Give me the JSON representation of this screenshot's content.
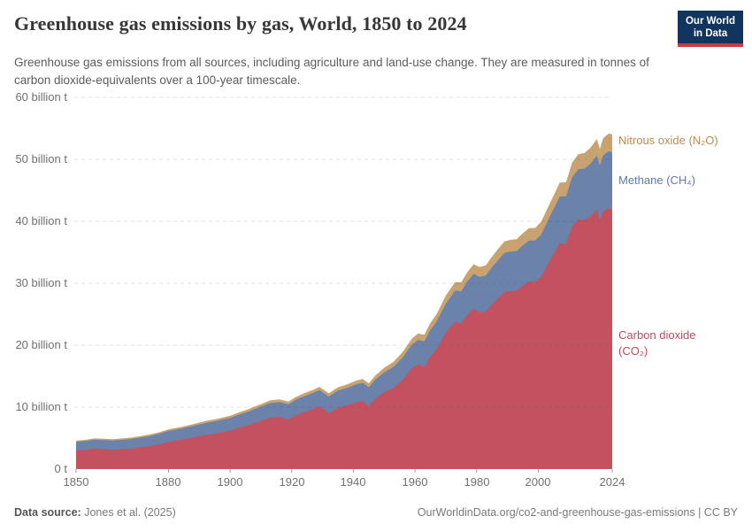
{
  "header": {
    "title": "Greenhouse gas emissions by gas, World, 1850 to 2024",
    "subtitle": "Greenhouse gas emissions from all sources, including agriculture and land-use change. They are measured in tonnes of carbon dioxide-equivalents over a 100-year timescale.",
    "logo": {
      "line1": "Our World",
      "line2": "in Data",
      "bg_color": "#12355f",
      "accent_color": "#d0383e"
    }
  },
  "footer": {
    "datasource_label": "Data source:",
    "datasource_value": "Jones et al. (2025)",
    "note_right": "OurWorldinData.org/co2-and-greenhouse-gas-emissions | CC BY"
  },
  "chart_data": {
    "type": "area",
    "stacked": true,
    "title": "Greenhouse gas emissions by gas, World, 1850 to 2024",
    "xlabel": "",
    "ylabel": "",
    "grid": "dashed",
    "legend_position": "right",
    "unit": "billion tonnes CO₂-equivalents",
    "xlim": [
      1850,
      2024
    ],
    "ylim": [
      0,
      60
    ],
    "xticks": [
      1850,
      1880,
      1900,
      1920,
      1940,
      1960,
      1980,
      2000,
      2024
    ],
    "yticks": [
      {
        "v": 0,
        "label": "0 t"
      },
      {
        "v": 10,
        "label": "10 billion t"
      },
      {
        "v": 20,
        "label": "20 billion t"
      },
      {
        "v": 30,
        "label": "30 billion t"
      },
      {
        "v": 40,
        "label": "40 billion t"
      },
      {
        "v": 50,
        "label": "50 billion t"
      },
      {
        "v": 60,
        "label": "60 billion t"
      }
    ],
    "x": [
      1850,
      1853,
      1856,
      1859,
      1862,
      1865,
      1868,
      1871,
      1874,
      1877,
      1880,
      1884,
      1888,
      1892,
      1896,
      1900,
      1903,
      1906,
      1910,
      1913,
      1916,
      1919,
      1921,
      1924,
      1927,
      1929,
      1932,
      1935,
      1938,
      1941,
      1943,
      1945,
      1947,
      1950,
      1953,
      1956,
      1959,
      1961,
      1963,
      1965,
      1967,
      1970,
      1973,
      1975,
      1977,
      1979,
      1981,
      1983,
      1985,
      1987,
      1989,
      1991,
      1993,
      1995,
      1997,
      1999,
      2001,
      2003,
      2005,
      2007,
      2009,
      2011,
      2013,
      2015,
      2017,
      2019,
      2020,
      2021,
      2022,
      2023,
      2024
    ],
    "series": [
      {
        "name": "co2",
        "label": "Carbon dioxide (CO₂)",
        "color": "#c4515f",
        "label_color": "#c6495e",
        "values": [
          3.0,
          3.1,
          3.3,
          3.2,
          3.1,
          3.2,
          3.3,
          3.5,
          3.7,
          4.0,
          4.4,
          4.7,
          5.1,
          5.5,
          5.8,
          6.2,
          6.7,
          7.1,
          7.8,
          8.3,
          8.4,
          8.0,
          8.6,
          9.2,
          9.7,
          10.1,
          9.0,
          9.9,
          10.3,
          10.8,
          11.0,
          10.2,
          11.3,
          12.4,
          13.1,
          14.4,
          16.3,
          16.9,
          16.5,
          18.2,
          19.4,
          22.0,
          23.8,
          23.5,
          24.9,
          25.9,
          25.3,
          25.4,
          26.6,
          27.6,
          28.6,
          28.7,
          28.8,
          29.6,
          30.3,
          30.2,
          31.1,
          33.0,
          34.8,
          36.5,
          36.3,
          39.2,
          40.3,
          40.2,
          40.8,
          41.9,
          40.2,
          41.6,
          41.9,
          42.1,
          41.8
        ]
      },
      {
        "name": "ch4",
        "label": "Methane (CH₄)",
        "color": "#6b82ab",
        "label_color": "#6379a9",
        "values": [
          1.4,
          1.43,
          1.45,
          1.48,
          1.5,
          1.53,
          1.56,
          1.6,
          1.65,
          1.7,
          1.75,
          1.81,
          1.87,
          1.93,
          2.0,
          2.05,
          2.1,
          2.18,
          2.28,
          2.35,
          2.4,
          2.45,
          2.5,
          2.55,
          2.6,
          2.65,
          2.7,
          2.75,
          2.8,
          2.88,
          2.93,
          3.0,
          3.05,
          3.2,
          3.4,
          3.6,
          3.8,
          3.95,
          4.1,
          4.25,
          4.4,
          4.7,
          5.0,
          5.2,
          5.4,
          5.6,
          5.72,
          5.85,
          6.0,
          6.15,
          6.3,
          6.4,
          6.4,
          6.5,
          6.6,
          6.7,
          6.8,
          7.0,
          7.2,
          7.5,
          7.7,
          7.9,
          8.1,
          8.3,
          8.5,
          8.7,
          8.8,
          9.0,
          9.1,
          9.2,
          9.3
        ]
      },
      {
        "name": "n2o",
        "label": "Nitrous oxide (N₂O)",
        "color": "#c9a36f",
        "label_color": "#bb8b52",
        "values": [
          0.18,
          0.19,
          0.2,
          0.2,
          0.21,
          0.22,
          0.22,
          0.23,
          0.24,
          0.25,
          0.26,
          0.27,
          0.29,
          0.31,
          0.33,
          0.35,
          0.37,
          0.39,
          0.41,
          0.43,
          0.44,
          0.45,
          0.46,
          0.48,
          0.5,
          0.52,
          0.53,
          0.55,
          0.58,
          0.6,
          0.62,
          0.64,
          0.68,
          0.75,
          0.8,
          0.88,
          0.96,
          1.02,
          1.08,
          1.14,
          1.2,
          1.3,
          1.38,
          1.44,
          1.5,
          1.56,
          1.6,
          1.65,
          1.7,
          1.78,
          1.86,
          1.9,
          1.92,
          1.96,
          2.0,
          2.02,
          2.06,
          2.1,
          2.16,
          2.24,
          2.28,
          2.36,
          2.44,
          2.52,
          2.6,
          2.68,
          2.7,
          2.76,
          2.82,
          2.86,
          2.9
        ]
      }
    ]
  }
}
